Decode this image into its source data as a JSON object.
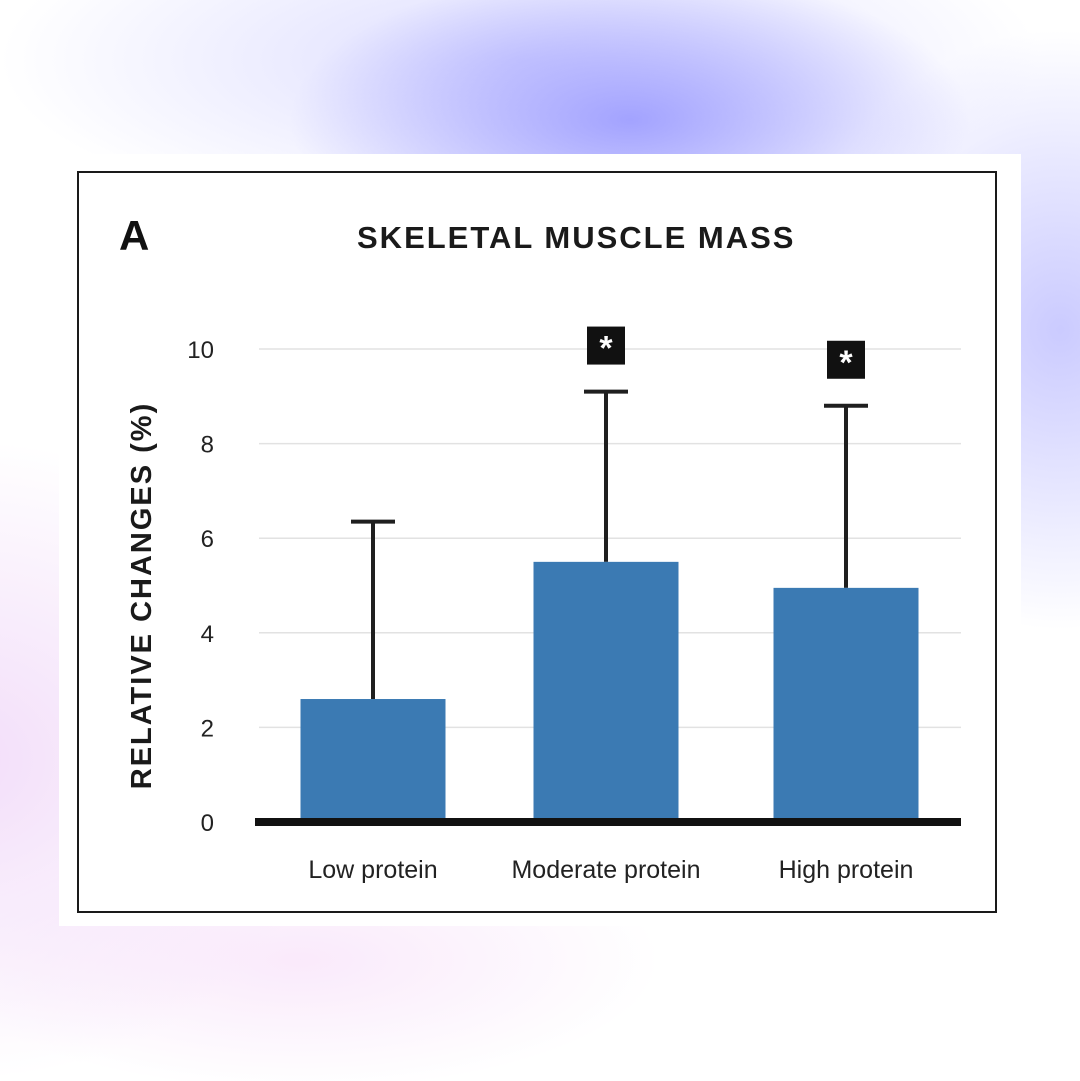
{
  "panel_label": "A",
  "chart_data": {
    "type": "bar",
    "title": "SKELETAL MUSCLE MASS",
    "xlabel": "",
    "ylabel": "RELATIVE CHANGES (%)",
    "categories": [
      "Low protein",
      "Moderate protein",
      "High protein"
    ],
    "values": [
      2.6,
      5.5,
      4.95
    ],
    "error_upper": [
      6.35,
      9.1,
      8.8
    ],
    "significance": [
      "",
      "*",
      "*"
    ],
    "ylim": [
      0,
      10
    ],
    "yticks": [
      0,
      2,
      4,
      6,
      8,
      10
    ],
    "grid": true,
    "bar_color": "#3b7ab3"
  }
}
